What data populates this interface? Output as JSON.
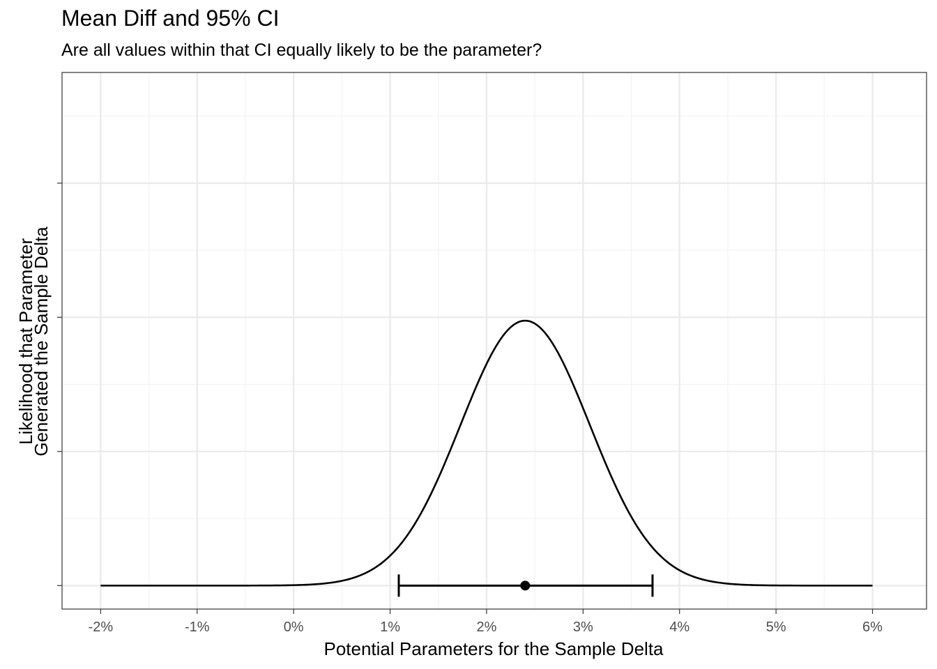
{
  "chart_data": {
    "type": "line",
    "title": "Mean Diff and 95% CI",
    "subtitle": "Are all values within that CI equally likely to be the parameter?",
    "xlabel": "Potential Parameters for the Sample Delta",
    "ylabel_lines": [
      "Likelihood that Parameter",
      "Generated the Sample Delta"
    ],
    "xlim": [
      -0.024,
      0.0656
    ],
    "ylim": [
      -0.035,
      0.765
    ],
    "x_ticks": [
      -0.02,
      -0.01,
      0,
      0.01,
      0.02,
      0.03,
      0.04,
      0.05,
      0.06
    ],
    "x_tick_labels": [
      "-2%",
      "-1%",
      "0%",
      "1%",
      "2%",
      "3%",
      "4%",
      "5%",
      "6%"
    ],
    "y_major_gridlines": [
      0,
      0.2,
      0.4,
      0.6
    ],
    "y_tick_labels_shown": false,
    "grid": true,
    "curve": {
      "shape": "normal",
      "mean": 0.024,
      "sd": 0.0067,
      "peak": 0.395,
      "x_range": [
        -0.02,
        0.06
      ]
    },
    "point_estimate": 0.024,
    "ci": {
      "lower": 0.0109,
      "upper": 0.0372
    },
    "colors": {
      "line": "#000000",
      "grid_major": "#ebebeb",
      "grid_minor": "#f2f2f2",
      "panel_border": "#333333",
      "tick_text": "#4d4d4d"
    }
  }
}
